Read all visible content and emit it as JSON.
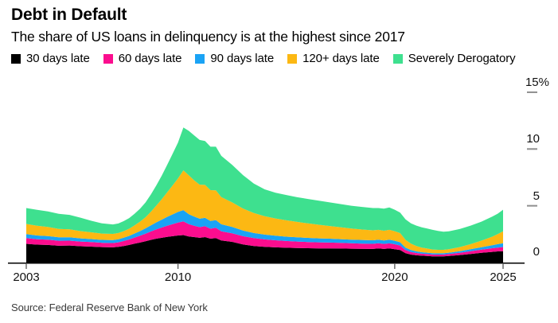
{
  "header": {
    "title": "Debt in Default",
    "subtitle": "The share of US loans in delinquency is at the highest since 2017"
  },
  "footer": {
    "source": "Source: Federal Reserve Bank of New York"
  },
  "chart_data": {
    "type": "area",
    "stacked": true,
    "title": "Debt in Default",
    "subtitle": "The share of US loans in delinquency is at the highest since 2017",
    "source": "Source: Federal Reserve Bank of New York",
    "legend_position": "top",
    "grid": false,
    "y_unit": "%",
    "xlim": [
      2003,
      2025
    ],
    "ylim": [
      0,
      15
    ],
    "xticks": [
      2003,
      2010,
      2020,
      2025
    ],
    "xtick_labels": [
      "2003",
      "2010",
      "2020",
      "2025"
    ],
    "yticks": [
      0,
      5,
      10,
      15
    ],
    "ytick_labels": [
      "0",
      "5",
      "10",
      "15%"
    ],
    "x": [
      2003,
      2003.5,
      2004,
      2004.5,
      2005,
      2005.5,
      2006,
      2006.5,
      2007,
      2007.25,
      2007.5,
      2007.75,
      2008,
      2008.25,
      2008.5,
      2008.75,
      2009,
      2009.25,
      2009.5,
      2009.75,
      2010,
      2010.25,
      2010.5,
      2010.75,
      2011,
      2011.25,
      2011.5,
      2011.75,
      2012,
      2012.5,
      2013,
      2013.5,
      2014,
      2014.5,
      2015,
      2015.5,
      2016,
      2016.5,
      2017,
      2017.5,
      2018,
      2018.5,
      2019,
      2019.25,
      2019.5,
      2019.75,
      2020,
      2020.25,
      2020.5,
      2020.75,
      2021,
      2021.25,
      2021.5,
      2021.75,
      2022,
      2022.25,
      2022.5,
      2023,
      2023.5,
      2024,
      2024.5,
      2024.75,
      2025
    ],
    "series": [
      {
        "name": "30 days late",
        "color": "#000000",
        "values": [
          1.65,
          1.58,
          1.55,
          1.48,
          1.5,
          1.44,
          1.4,
          1.36,
          1.34,
          1.38,
          1.46,
          1.55,
          1.66,
          1.76,
          1.88,
          2.0,
          2.1,
          2.18,
          2.26,
          2.32,
          2.38,
          2.42,
          2.3,
          2.24,
          2.18,
          2.24,
          2.1,
          2.16,
          1.95,
          1.82,
          1.6,
          1.45,
          1.38,
          1.34,
          1.3,
          1.28,
          1.26,
          1.25,
          1.24,
          1.23,
          1.22,
          1.21,
          1.2,
          1.24,
          1.2,
          1.24,
          1.18,
          1.1,
          0.82,
          0.7,
          0.64,
          0.6,
          0.58,
          0.55,
          0.54,
          0.55,
          0.58,
          0.66,
          0.76,
          0.86,
          0.94,
          0.98,
          1.0
        ]
      },
      {
        "name": "60 days late",
        "color": "#fb0d8e",
        "values": [
          0.5,
          0.47,
          0.46,
          0.44,
          0.43,
          0.41,
          0.4,
          0.38,
          0.38,
          0.4,
          0.44,
          0.48,
          0.54,
          0.6,
          0.66,
          0.74,
          0.82,
          0.9,
          0.98,
          1.06,
          1.14,
          1.2,
          1.08,
          1.0,
          0.94,
          0.96,
          0.88,
          0.9,
          0.8,
          0.76,
          0.72,
          0.7,
          0.66,
          0.62,
          0.6,
          0.57,
          0.55,
          0.53,
          0.52,
          0.5,
          0.48,
          0.46,
          0.45,
          0.46,
          0.44,
          0.45,
          0.43,
          0.4,
          0.28,
          0.23,
          0.2,
          0.18,
          0.17,
          0.16,
          0.16,
          0.16,
          0.17,
          0.2,
          0.24,
          0.28,
          0.32,
          0.34,
          0.37
        ]
      },
      {
        "name": "90 days late",
        "color": "#1aa3f5",
        "values": [
          0.35,
          0.33,
          0.32,
          0.3,
          0.29,
          0.28,
          0.27,
          0.26,
          0.26,
          0.27,
          0.29,
          0.32,
          0.36,
          0.41,
          0.47,
          0.54,
          0.62,
          0.7,
          0.78,
          0.86,
          0.94,
          1.0,
          0.88,
          0.8,
          0.74,
          0.74,
          0.68,
          0.68,
          0.62,
          0.56,
          0.5,
          0.45,
          0.42,
          0.4,
          0.38,
          0.37,
          0.36,
          0.35,
          0.34,
          0.33,
          0.32,
          0.32,
          0.31,
          0.32,
          0.31,
          0.32,
          0.31,
          0.29,
          0.22,
          0.18,
          0.15,
          0.13,
          0.12,
          0.11,
          0.11,
          0.11,
          0.12,
          0.14,
          0.17,
          0.21,
          0.26,
          0.3,
          0.33
        ]
      },
      {
        "name": "120+ days late",
        "color": "#fcb813",
        "values": [
          0.9,
          0.86,
          0.8,
          0.74,
          0.7,
          0.64,
          0.59,
          0.55,
          0.54,
          0.55,
          0.58,
          0.63,
          0.72,
          0.83,
          0.98,
          1.2,
          1.48,
          1.8,
          2.16,
          2.55,
          2.95,
          3.5,
          3.42,
          3.2,
          3.0,
          2.9,
          2.72,
          2.62,
          2.4,
          2.16,
          1.94,
          1.76,
          1.62,
          1.52,
          1.44,
          1.36,
          1.28,
          1.2,
          1.12,
          1.05,
          0.98,
          0.92,
          0.88,
          0.86,
          0.85,
          0.87,
          0.84,
          0.8,
          0.68,
          0.56,
          0.46,
          0.4,
          0.36,
          0.33,
          0.31,
          0.3,
          0.31,
          0.36,
          0.45,
          0.58,
          0.76,
          0.88,
          1.05
        ]
      },
      {
        "name": "Severely Derogatory",
        "color": "#3ee08f",
        "values": [
          1.4,
          1.4,
          1.37,
          1.33,
          1.28,
          1.18,
          1.02,
          0.9,
          0.84,
          0.84,
          0.88,
          0.94,
          1.02,
          1.14,
          1.3,
          1.52,
          1.78,
          2.08,
          2.42,
          2.78,
          3.15,
          3.78,
          3.92,
          3.96,
          3.94,
          3.86,
          3.82,
          3.84,
          3.63,
          3.3,
          2.94,
          2.59,
          2.37,
          2.27,
          2.23,
          2.17,
          2.15,
          2.12,
          2.08,
          2.04,
          2.0,
          1.99,
          1.96,
          1.92,
          1.95,
          1.97,
          1.89,
          1.81,
          1.8,
          1.78,
          1.8,
          1.79,
          1.77,
          1.73,
          1.66,
          1.6,
          1.57,
          1.59,
          1.63,
          1.67,
          1.77,
          1.8,
          1.9
        ]
      }
    ]
  }
}
